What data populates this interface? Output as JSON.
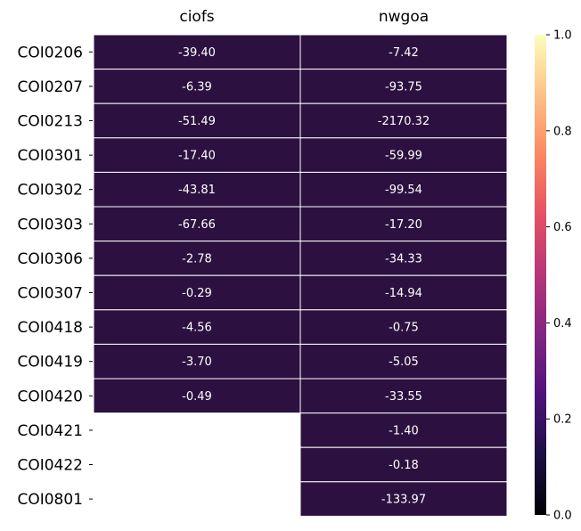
{
  "chart_data": {
    "type": "heatmap",
    "columns": [
      "ciofs",
      "nwgoa"
    ],
    "rows": [
      "COI0206",
      "COI0207",
      "COI0213",
      "COI0301",
      "COI0302",
      "COI0303",
      "COI0306",
      "COI0307",
      "COI0418",
      "COI0419",
      "COI0420",
      "COI0421",
      "COI0422",
      "COI0801"
    ],
    "values": [
      [
        -39.4,
        -7.42
      ],
      [
        -6.39,
        -93.75
      ],
      [
        -51.49,
        -2170.32
      ],
      [
        -17.4,
        -59.99
      ],
      [
        -43.81,
        -99.54
      ],
      [
        -67.66,
        -17.2
      ],
      [
        -2.78,
        -34.33
      ],
      [
        -0.29,
        -14.94
      ],
      [
        -4.56,
        -0.75
      ],
      [
        -3.7,
        -5.05
      ],
      [
        -0.49,
        -33.55
      ],
      [
        null,
        -1.4
      ],
      [
        null,
        -0.18
      ],
      [
        null,
        -133.97
      ]
    ],
    "value_labels": [
      [
        "-39.40",
        "-7.42"
      ],
      [
        "-6.39",
        "-93.75"
      ],
      [
        "-51.49",
        "-2170.32"
      ],
      [
        "-17.40",
        "-59.99"
      ],
      [
        "-43.81",
        "-99.54"
      ],
      [
        "-67.66",
        "-17.20"
      ],
      [
        "-2.78",
        "-34.33"
      ],
      [
        "-0.29",
        "-14.94"
      ],
      [
        "-4.56",
        "-0.75"
      ],
      [
        "-3.70",
        "-5.05"
      ],
      [
        "-0.49",
        "-33.55"
      ],
      [
        null,
        "-1.40"
      ],
      [
        null,
        "-0.18"
      ],
      [
        null,
        "-133.97"
      ]
    ],
    "colorbar": {
      "range": [
        0.0,
        1.0
      ],
      "ticks": [
        "0.0",
        "0.2",
        "0.4",
        "0.6",
        "0.8",
        "1.0"
      ],
      "colormap": "magma",
      "colors": [
        "#000004",
        "#1c1044",
        "#4f127b",
        "#812581",
        "#b5367a",
        "#e55064",
        "#fb8761",
        "#fec287",
        "#fcfdbf"
      ]
    },
    "cell_color": "#2c1140",
    "grid_line_color": "#ffffff",
    "column_labels_position": "top",
    "title": "",
    "xlabel": "",
    "ylabel": ""
  }
}
